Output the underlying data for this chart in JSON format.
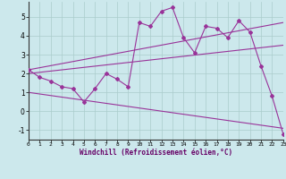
{
  "xlabel": "Windchill (Refroidissement éolien,°C)",
  "bg_color": "#cce8ec",
  "grid_color": "#aacccc",
  "line_color": "#993399",
  "xlim": [
    0,
    23
  ],
  "ylim": [
    -1.5,
    5.8
  ],
  "yticks": [
    -1,
    0,
    1,
    2,
    3,
    4,
    5
  ],
  "xticks": [
    0,
    1,
    2,
    3,
    4,
    5,
    6,
    7,
    8,
    9,
    10,
    11,
    12,
    13,
    14,
    15,
    16,
    17,
    18,
    19,
    20,
    21,
    22,
    23
  ],
  "series": [
    {
      "x": [
        0,
        1,
        2,
        3,
        4,
        5,
        6,
        7,
        8,
        9,
        10,
        11,
        12,
        13,
        14,
        15,
        16,
        17,
        18,
        19,
        20,
        21,
        22,
        23
      ],
      "y": [
        2.2,
        1.8,
        1.6,
        1.3,
        1.2,
        0.5,
        1.2,
        2.0,
        1.7,
        1.3,
        4.7,
        4.5,
        5.3,
        5.5,
        3.9,
        3.1,
        4.5,
        4.4,
        3.9,
        4.8,
        4.2,
        2.4,
        0.8,
        -1.2
      ],
      "has_markers": true
    },
    {
      "x": [
        0,
        23
      ],
      "y": [
        2.2,
        4.7
      ],
      "has_markers": false
    },
    {
      "x": [
        0,
        23
      ],
      "y": [
        2.0,
        3.5
      ],
      "has_markers": false
    },
    {
      "x": [
        0,
        23
      ],
      "y": [
        1.0,
        -0.9
      ],
      "has_markers": false
    }
  ]
}
